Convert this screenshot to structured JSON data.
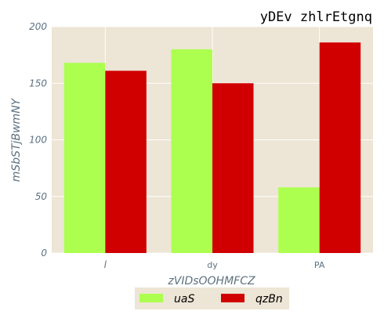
{
  "chart_data": {
    "type": "bar",
    "title": "yDEv zhlrEtgnq",
    "xlabel": "zVIDsOOHMFCZ",
    "ylabel": "mSbSTjBwmNY",
    "categories": [
      "l",
      "dy",
      "PA"
    ],
    "series": [
      {
        "name": "uaS",
        "values": [
          168,
          180,
          58
        ],
        "color": "#adff4f"
      },
      {
        "name": "qzBn",
        "values": [
          161,
          150,
          186
        ],
        "color": "#d10000"
      }
    ],
    "ylim": [
      0,
      200
    ],
    "yticks": [
      0,
      50,
      100,
      150,
      200
    ],
    "grid": true,
    "legend_position": "bottom-center",
    "colors": {
      "plot_background": "#ede5d5",
      "grid": "#ffffff",
      "tick_text": "#5d7180"
    }
  }
}
